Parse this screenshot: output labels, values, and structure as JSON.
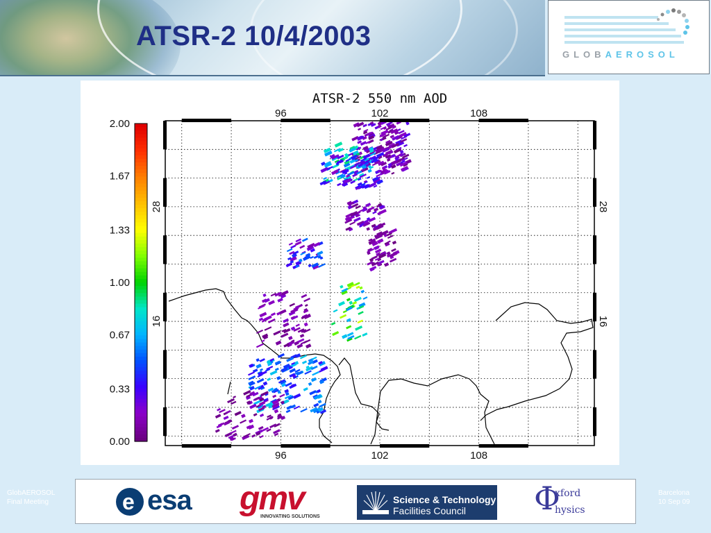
{
  "slide": {
    "title": "ATSR-2 10/4/2003",
    "footer_left_line1": "GlobAEROSOL",
    "footer_left_line2": "Final Meeting",
    "footer_right_line1": "Barcelona",
    "footer_right_line2": "10 Sep 09"
  },
  "logos": {
    "globaerosol_part1": "GLOB",
    "globaerosol_part2": "AEROSOL",
    "esa": "esa",
    "gmv": "gmv",
    "gmv_sub": "INNOVATING SOLUTIONS",
    "stfc_line1": "Science & Technology",
    "stfc_line2": "Facilities Council",
    "oxford_phi": "Φ",
    "oxford_line1": "xford",
    "oxford_line2": "hysics"
  },
  "colors": {
    "title": "#1f2f86",
    "header_border": "#4b6f8e",
    "background": "#d9ecf8"
  },
  "chart_data": {
    "type": "heatmap",
    "title": "ATSR-2 550 nm AOD",
    "colorbar": {
      "min": 0.0,
      "max": 2.0,
      "tick_labels": [
        "2.00",
        "1.67",
        "1.33",
        "1.00",
        "0.67",
        "0.33",
        "0.00"
      ],
      "colormap": [
        "#6a0080",
        "#8b00c8",
        "#3a00ff",
        "#0050ff",
        "#00b4ff",
        "#00e6c8",
        "#00d200",
        "#80ff00",
        "#ffff00",
        "#ffc000",
        "#ff8000",
        "#ff3000",
        "#e00000"
      ]
    },
    "x_axis": {
      "tick_labels": [
        "96",
        "102",
        "108"
      ],
      "values": [
        96,
        102,
        108
      ],
      "range": [
        89,
        115
      ]
    },
    "y_axis": {
      "tick_labels": [
        "28",
        "16"
      ],
      "values": [
        28,
        16
      ],
      "range": [
        3,
        37
      ]
    },
    "grid": true,
    "grid_style": "dotted",
    "swath_clusters": [
      {
        "aod_min": 0.0,
        "aod_max": 0.3,
        "count": 160,
        "lon": [
          100.2,
          103.6
        ],
        "lat": [
          31.5,
          37.0
        ]
      },
      {
        "aod_min": 0.55,
        "aod_max": 0.95,
        "count": 60,
        "lon": [
          98.5,
          101.5
        ],
        "lat": [
          30.5,
          34.5
        ]
      },
      {
        "aod_min": 0.15,
        "aod_max": 0.45,
        "count": 70,
        "lon": [
          98.3,
          101.8
        ],
        "lat": [
          30.0,
          33.5
        ]
      },
      {
        "aod_min": 0.0,
        "aod_max": 0.2,
        "count": 50,
        "lon": [
          101.2,
          102.8
        ],
        "lat": [
          21.5,
          25.5
        ]
      },
      {
        "aod_min": 0.6,
        "aod_max": 1.3,
        "count": 40,
        "lon": [
          99.0,
          101.0
        ],
        "lat": [
          14.0,
          20.0
        ]
      },
      {
        "aod_min": 0.1,
        "aod_max": 0.6,
        "count": 40,
        "lon": [
          96.3,
          98.5
        ],
        "lat": [
          21.5,
          24.5
        ]
      },
      {
        "aod_min": 0.0,
        "aod_max": 0.2,
        "count": 70,
        "lon": [
          94.5,
          97.5
        ],
        "lat": [
          13.0,
          19.0
        ]
      },
      {
        "aod_min": 0.3,
        "aod_max": 0.75,
        "count": 130,
        "lon": [
          94.0,
          98.5
        ],
        "lat": [
          6.5,
          12.5
        ]
      },
      {
        "aod_min": 0.0,
        "aod_max": 0.2,
        "count": 80,
        "lon": [
          92.0,
          96.0
        ],
        "lat": [
          3.5,
          8.5
        ]
      },
      {
        "aod_min": 0.0,
        "aod_max": 0.3,
        "count": 50,
        "lon": [
          99.8,
          102.0
        ],
        "lat": [
          25.5,
          28.5
        ]
      }
    ],
    "xlabel": "",
    "ylabel": ""
  }
}
